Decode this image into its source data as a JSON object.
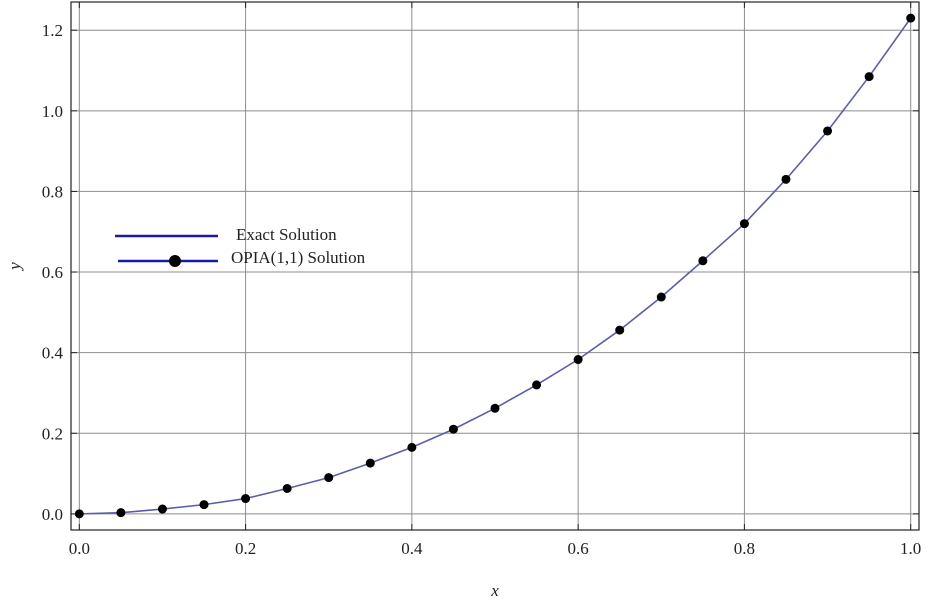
{
  "chart_data": {
    "type": "line",
    "title": "",
    "xlabel": "x",
    "ylabel": "y",
    "xlim": [
      -0.01,
      1.01
    ],
    "ylim": [
      -0.04,
      1.27
    ],
    "grid": true,
    "legend_placement": "left",
    "x_ticks": [
      "0.0",
      "0.2",
      "0.4",
      "0.6",
      "0.8",
      "1.0"
    ],
    "y_ticks": [
      "0.0",
      "0.2",
      "0.4",
      "0.6",
      "0.8",
      "1.0",
      "1.2"
    ],
    "series": [
      {
        "name": "Exact Solution",
        "style": "line",
        "color": "#5b5ea6",
        "x": [
          0.0,
          0.05,
          0.1,
          0.15,
          0.2,
          0.25,
          0.3,
          0.35,
          0.4,
          0.45,
          0.5,
          0.55,
          0.6,
          0.65,
          0.7,
          0.75,
          0.8,
          0.85,
          0.9,
          0.95,
          1.0
        ],
        "y": [
          0.0,
          0.003,
          0.012,
          0.023,
          0.038,
          0.063,
          0.09,
          0.126,
          0.165,
          0.21,
          0.262,
          0.32,
          0.383,
          0.456,
          0.538,
          0.628,
          0.72,
          0.83,
          0.95,
          1.085,
          1.23
        ]
      },
      {
        "name": "OPIA(1,1) Solution",
        "style": "markers",
        "color": "#000000",
        "x": [
          0.0,
          0.05,
          0.1,
          0.15,
          0.2,
          0.25,
          0.3,
          0.35,
          0.4,
          0.45,
          0.5,
          0.55,
          0.6,
          0.65,
          0.7,
          0.75,
          0.8,
          0.85,
          0.9,
          0.95,
          1.0
        ],
        "y": [
          0.0,
          0.003,
          0.012,
          0.023,
          0.038,
          0.063,
          0.09,
          0.126,
          0.165,
          0.21,
          0.262,
          0.32,
          0.383,
          0.456,
          0.538,
          0.628,
          0.72,
          0.83,
          0.95,
          1.085,
          1.23
        ]
      }
    ],
    "legend_line_color": "#1a1aa8"
  }
}
